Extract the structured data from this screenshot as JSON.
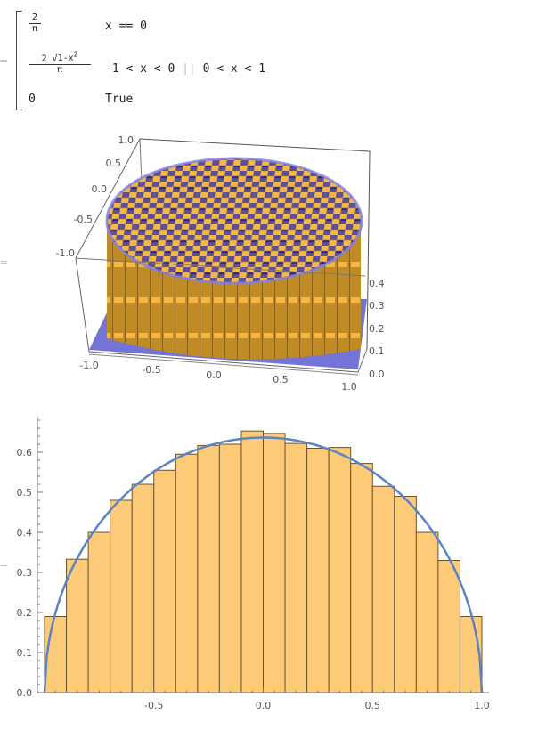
{
  "piecewise": {
    "cases": [
      {
        "value_num": "2",
        "value_den": "π",
        "condition": "x == 0"
      },
      {
        "value_num_prefix": "2 ",
        "value_num_sqrt": "1-x",
        "value_num_exp": "2",
        "value_den": "π",
        "condition_left": "-1 < x < 0",
        "condition_or": "||",
        "condition_right": "0 < x < 1"
      },
      {
        "value": "0",
        "condition": "True"
      }
    ]
  },
  "histogram3d": {
    "x_ticks": [
      "-1.0",
      "-0.5",
      "0.0",
      "0.5",
      "1.0"
    ],
    "y_ticks": [
      "1.0",
      "0.5",
      "0.0",
      "-0.5",
      "-1.0"
    ],
    "z_ticks": [
      "0.4",
      "0.3",
      "0.2",
      "0.1",
      "0.0"
    ],
    "colors": {
      "bars": "#f5b640",
      "disk": "#6f6fd8"
    }
  },
  "chart_data": {
    "type": "bar",
    "title": "",
    "xlabel": "",
    "ylabel": "",
    "xlim": [
      -1.0,
      1.0
    ],
    "ylim": [
      0.0,
      0.68
    ],
    "x_ticks": [
      "-0.5",
      "0.0",
      "0.5",
      "1.0"
    ],
    "y_ticks": [
      "0.0",
      "0.1",
      "0.2",
      "0.3",
      "0.4",
      "0.5",
      "0.6"
    ],
    "bin_edges": [
      -1.0,
      -0.9,
      -0.8,
      -0.7,
      -0.6,
      -0.5,
      -0.4,
      -0.3,
      -0.2,
      -0.1,
      0.0,
      0.1,
      0.2,
      0.3,
      0.4,
      0.5,
      0.6,
      0.7,
      0.8,
      0.9,
      1.0
    ],
    "values": [
      0.19,
      0.333,
      0.4,
      0.48,
      0.52,
      0.555,
      0.595,
      0.617,
      0.62,
      0.653,
      0.647,
      0.622,
      0.61,
      0.612,
      0.572,
      0.515,
      0.49,
      0.4,
      0.33,
      0.19
    ],
    "overlay_curve": {
      "name": "2 Sqrt[1-x^2]/Pi",
      "type": "line",
      "color": "#5b84c4"
    },
    "colors": {
      "bar_fill": "#fdcb78",
      "bar_edge": "#6b5330",
      "curve": "#5b84c4"
    },
    "grid": false
  }
}
